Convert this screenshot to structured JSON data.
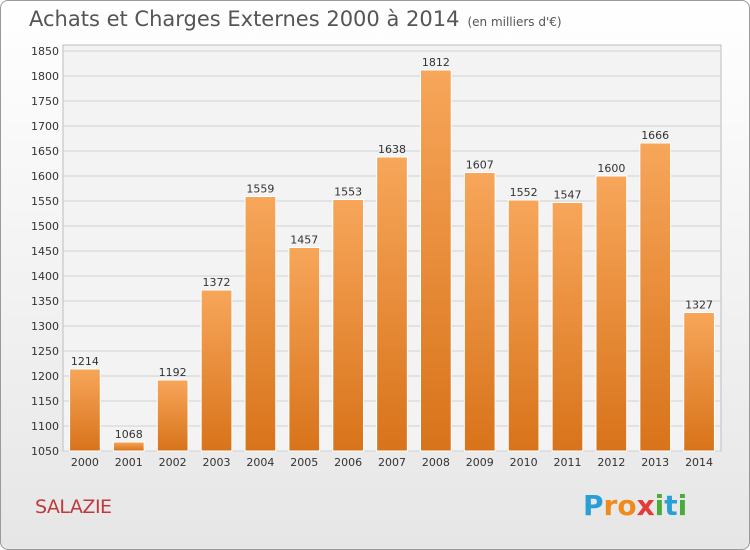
{
  "title": "Achats et Charges Externes 2000 à 2014",
  "subtitle": "(en milliers d'€)",
  "place": "SALAZIE",
  "logo": {
    "letters": [
      "P",
      "r",
      "o",
      "x",
      "i",
      "t",
      "i"
    ],
    "colors": [
      "#2a9fd6",
      "#f08a1c",
      "#f08a1c",
      "#e33a3a",
      "#4aab3a",
      "#2a9fd6",
      "#4aab3a"
    ]
  },
  "colors": {
    "bar": "#f08a1c",
    "bar_light": "#f6a656",
    "text": "#555555",
    "place": "#c0393b"
  },
  "chart_data": {
    "type": "bar",
    "categories": [
      "2000",
      "2001",
      "2002",
      "2003",
      "2004",
      "2005",
      "2006",
      "2007",
      "2008",
      "2009",
      "2010",
      "2011",
      "2012",
      "2013",
      "2014"
    ],
    "values": [
      1214,
      1068,
      1192,
      1372,
      1559,
      1457,
      1553,
      1638,
      1812,
      1607,
      1552,
      1547,
      1600,
      1666,
      1327
    ],
    "ylim": [
      1050,
      1850
    ],
    "yticks": [
      1050,
      1100,
      1150,
      1200,
      1250,
      1300,
      1350,
      1400,
      1450,
      1500,
      1550,
      1600,
      1650,
      1700,
      1750,
      1800,
      1850
    ],
    "grid": true,
    "xlabel": "",
    "ylabel": ""
  }
}
